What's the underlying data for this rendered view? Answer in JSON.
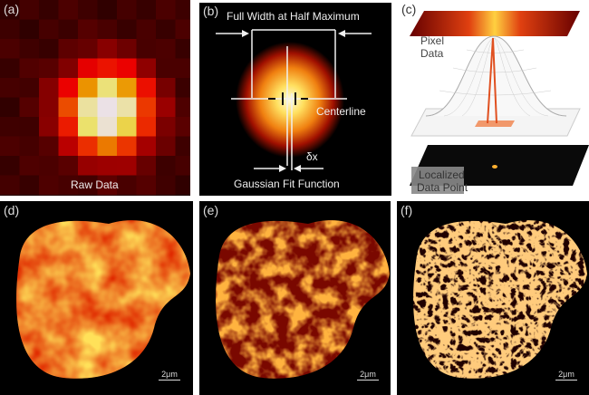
{
  "panels": {
    "a": {
      "label": "(a)",
      "caption": "Raw Data"
    },
    "b": {
      "label": "(b)",
      "fwhm": "Full Width at Half Maximum",
      "centerline": "Centerline",
      "delta": "δx",
      "fit": "Gaussian Fit Function"
    },
    "c": {
      "label": "(c)",
      "pixel_data": "Pixel\nData",
      "pixel_line1": "Pixel",
      "pixel_line2": "Data",
      "loc_line1": "Localized",
      "loc_line2": "Data Point"
    },
    "d": {
      "label": "(d)",
      "scale": "2μm"
    },
    "e": {
      "label": "(e)",
      "scale": "2μm"
    },
    "f": {
      "label": "(f)",
      "scale": "2μm"
    }
  },
  "colors": {
    "hot_dark": "#3a0000",
    "hot_red": "#c01010",
    "hot_orange": "#f08020",
    "hot_yellow": "#f0d030",
    "hot_white": "#f4f0ea"
  }
}
